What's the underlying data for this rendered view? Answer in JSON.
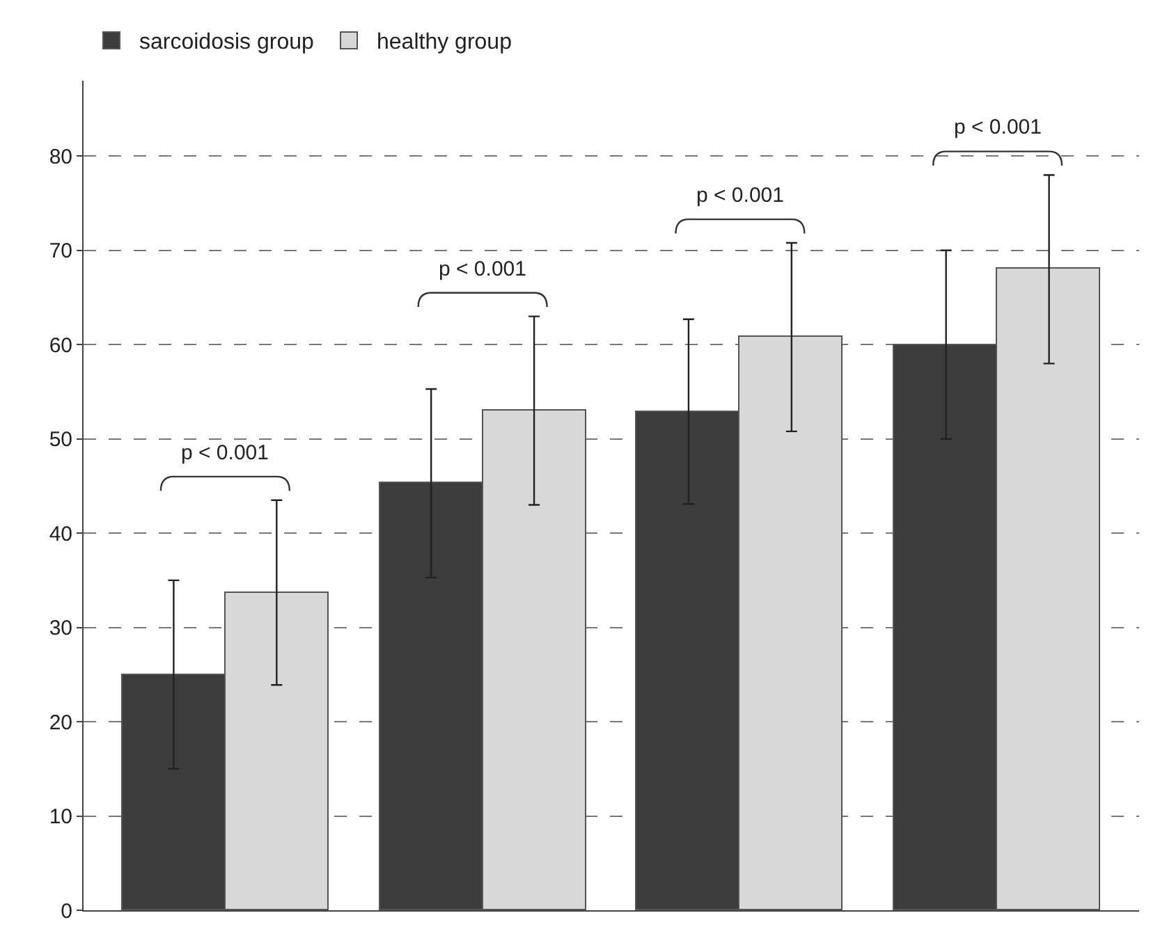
{
  "chart_data": {
    "type": "bar",
    "categories": [
      null,
      null,
      null,
      null
    ],
    "series": [
      {
        "name": "sarcoidosis group",
        "color": "#3c3c3c",
        "values": [
          25,
          45.3,
          52.9,
          60
        ],
        "errors": [
          10,
          10,
          9.8,
          10
        ]
      },
      {
        "name": "healthy group",
        "color": "#d8d8d8",
        "values": [
          33.7,
          53,
          60.8,
          68
        ],
        "errors": [
          9.8,
          10,
          10,
          10
        ]
      }
    ],
    "annotations": [
      "p < 0.001",
      "p < 0.001",
      "p < 0.001",
      "p < 0.001"
    ],
    "ylim": [
      0,
      88
    ],
    "yticks": [
      0,
      10,
      20,
      30,
      40,
      50,
      60,
      70,
      80
    ],
    "grid": "y",
    "legend": "top left"
  }
}
